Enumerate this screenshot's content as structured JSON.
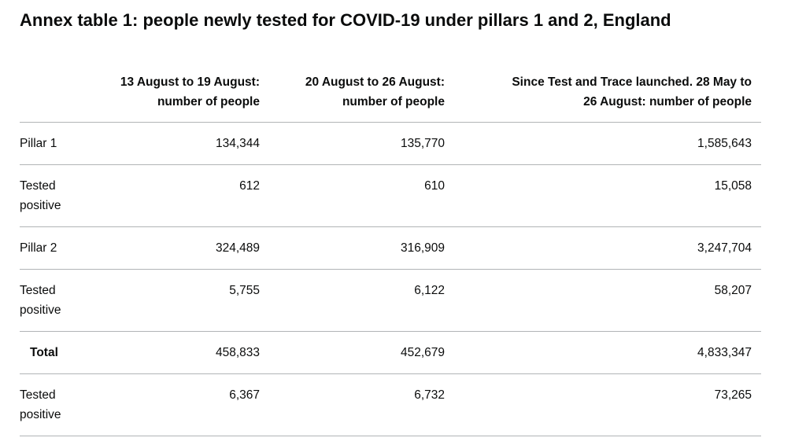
{
  "page": {
    "title": "Annex table 1: people newly tested for COVID-19 under pillars 1 and 2, England"
  },
  "table": {
    "headers": [
      "13 August to 19 August:\nnumber of people",
      "20 August to 26 August:\nnumber of people",
      "Since Test and Trace launched. 28 May to\n26 August: number of people"
    ],
    "rows": [
      {
        "label": "Pillar 1",
        "values": [
          "134,344",
          "135,770",
          "1,585,643"
        ]
      },
      {
        "label": "Tested positive",
        "values": [
          "612",
          "610",
          "15,058"
        ]
      },
      {
        "label": "Pillar 2",
        "values": [
          "324,489",
          "316,909",
          "3,247,704"
        ]
      },
      {
        "label": "Tested positive",
        "values": [
          "5,755",
          "6,122",
          "58,207"
        ]
      },
      {
        "label": "Total",
        "values": [
          "458,833",
          "452,679",
          "4,833,347"
        ]
      },
      {
        "label": "Tested positive",
        "values": [
          "6,367",
          "6,732",
          "73,265"
        ]
      }
    ],
    "colors": {
      "text": "#0b0c0c",
      "rule": "#b1b4b6"
    }
  }
}
